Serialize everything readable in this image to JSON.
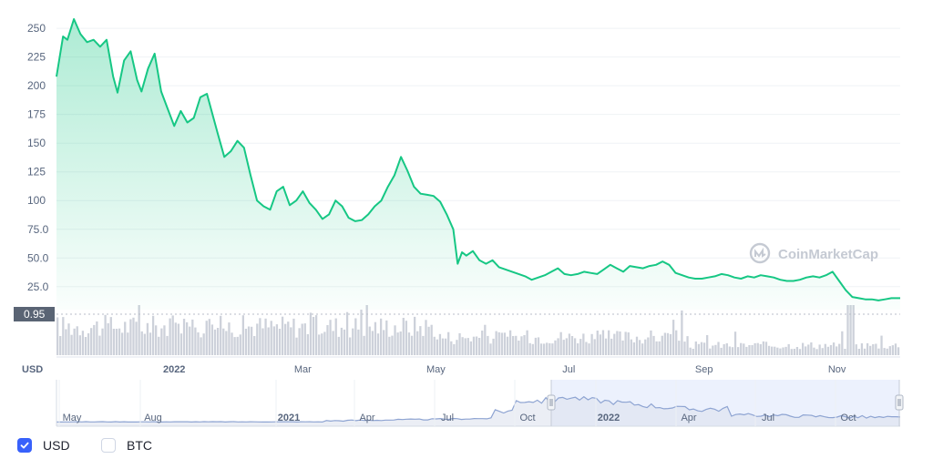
{
  "colors": {
    "line": "#16c784",
    "volume": "#cdd1da",
    "grid": "#eff2f5",
    "nav_line": "#8ea4d2",
    "nav_sel": "#e6ecfc",
    "check": "#3861fb"
  },
  "watermark": {
    "text": "CoinMarketCap",
    "icon": "coinmarketcap-logo-icon"
  },
  "axis_unit": "USD",
  "current_volume_label": "0.95",
  "legend": [
    {
      "label": "USD",
      "checked": true
    },
    {
      "label": "BTC",
      "checked": false
    }
  ],
  "chart_data": {
    "type": "line",
    "y_ticks": [
      "25.0",
      "50.0",
      "75.0",
      "100",
      "125",
      "150",
      "175",
      "200",
      "225",
      "250"
    ],
    "ylim": [
      5,
      262
    ],
    "x_ticks": [
      {
        "label": "2022",
        "x": "2022-01-01",
        "major": true
      },
      {
        "label": "Mar",
        "x": "2022-03-01",
        "major": false
      },
      {
        "label": "May",
        "x": "2022-05-01",
        "major": false
      },
      {
        "label": "Jul",
        "x": "2022-07-01",
        "major": false
      },
      {
        "label": "Sep",
        "x": "2022-09-01",
        "major": false
      },
      {
        "label": "Nov",
        "x": "2022-11-01",
        "major": false
      }
    ],
    "xlim": [
      "2021-11-08",
      "2022-11-30"
    ],
    "series": [
      {
        "points": [
          [
            "2021-11-08",
            208
          ],
          [
            "2021-11-11",
            243
          ],
          [
            "2021-11-13",
            240
          ],
          [
            "2021-11-16",
            258
          ],
          [
            "2021-11-19",
            245
          ],
          [
            "2021-11-22",
            238
          ],
          [
            "2021-11-25",
            240
          ],
          [
            "2021-11-28",
            234
          ],
          [
            "2021-12-01",
            240
          ],
          [
            "2021-12-04",
            208
          ],
          [
            "2021-12-06",
            194
          ],
          [
            "2021-12-09",
            222
          ],
          [
            "2021-12-12",
            230
          ],
          [
            "2021-12-15",
            205
          ],
          [
            "2021-12-17",
            195
          ],
          [
            "2021-12-20",
            215
          ],
          [
            "2021-12-23",
            228
          ],
          [
            "2021-12-26",
            195
          ],
          [
            "2021-12-29",
            180
          ],
          [
            "2022-01-01",
            165
          ],
          [
            "2022-01-04",
            178
          ],
          [
            "2022-01-07",
            168
          ],
          [
            "2022-01-10",
            172
          ],
          [
            "2022-01-13",
            190
          ],
          [
            "2022-01-16",
            193
          ],
          [
            "2022-01-19",
            172
          ],
          [
            "2022-01-21",
            158
          ],
          [
            "2022-01-24",
            138
          ],
          [
            "2022-01-27",
            143
          ],
          [
            "2022-01-30",
            152
          ],
          [
            "2022-02-02",
            146
          ],
          [
            "2022-02-05",
            122
          ],
          [
            "2022-02-08",
            100
          ],
          [
            "2022-02-11",
            95
          ],
          [
            "2022-02-14",
            92
          ],
          [
            "2022-02-17",
            108
          ],
          [
            "2022-02-20",
            112
          ],
          [
            "2022-02-23",
            96
          ],
          [
            "2022-02-26",
            100
          ],
          [
            "2022-03-01",
            108
          ],
          [
            "2022-03-04",
            98
          ],
          [
            "2022-03-07",
            92
          ],
          [
            "2022-03-10",
            84
          ],
          [
            "2022-03-13",
            88
          ],
          [
            "2022-03-16",
            100
          ],
          [
            "2022-03-19",
            95
          ],
          [
            "2022-03-22",
            85
          ],
          [
            "2022-03-25",
            82
          ],
          [
            "2022-03-28",
            83
          ],
          [
            "2022-03-31",
            88
          ],
          [
            "2022-04-03",
            95
          ],
          [
            "2022-04-06",
            100
          ],
          [
            "2022-04-09",
            112
          ],
          [
            "2022-04-12",
            122
          ],
          [
            "2022-04-15",
            138
          ],
          [
            "2022-04-18",
            126
          ],
          [
            "2022-04-21",
            112
          ],
          [
            "2022-04-24",
            106
          ],
          [
            "2022-04-27",
            105
          ],
          [
            "2022-04-30",
            104
          ],
          [
            "2022-05-03",
            99
          ],
          [
            "2022-05-06",
            88
          ],
          [
            "2022-05-09",
            75
          ],
          [
            "2022-05-11",
            45
          ],
          [
            "2022-05-13",
            55
          ],
          [
            "2022-05-15",
            52
          ],
          [
            "2022-05-18",
            56
          ],
          [
            "2022-05-21",
            48
          ],
          [
            "2022-05-24",
            45
          ],
          [
            "2022-05-27",
            48
          ],
          [
            "2022-05-30",
            42
          ],
          [
            "2022-06-02",
            40
          ],
          [
            "2022-06-05",
            38
          ],
          [
            "2022-06-08",
            36
          ],
          [
            "2022-06-11",
            34
          ],
          [
            "2022-06-14",
            31
          ],
          [
            "2022-06-17",
            33
          ],
          [
            "2022-06-20",
            35
          ],
          [
            "2022-06-23",
            38
          ],
          [
            "2022-06-26",
            41
          ],
          [
            "2022-06-29",
            36
          ],
          [
            "2022-07-02",
            35
          ],
          [
            "2022-07-05",
            36
          ],
          [
            "2022-07-08",
            38
          ],
          [
            "2022-07-11",
            37
          ],
          [
            "2022-07-14",
            36
          ],
          [
            "2022-07-17",
            40
          ],
          [
            "2022-07-20",
            44
          ],
          [
            "2022-07-23",
            41
          ],
          [
            "2022-07-26",
            38
          ],
          [
            "2022-07-29",
            43
          ],
          [
            "2022-08-01",
            42
          ],
          [
            "2022-08-04",
            41
          ],
          [
            "2022-08-07",
            43
          ],
          [
            "2022-08-10",
            44
          ],
          [
            "2022-08-13",
            47
          ],
          [
            "2022-08-16",
            44
          ],
          [
            "2022-08-19",
            37
          ],
          [
            "2022-08-22",
            35
          ],
          [
            "2022-08-25",
            33
          ],
          [
            "2022-08-28",
            32
          ],
          [
            "2022-08-31",
            32
          ],
          [
            "2022-09-03",
            33
          ],
          [
            "2022-09-06",
            34
          ],
          [
            "2022-09-09",
            36
          ],
          [
            "2022-09-12",
            35
          ],
          [
            "2022-09-15",
            33
          ],
          [
            "2022-09-18",
            32
          ],
          [
            "2022-09-21",
            34
          ],
          [
            "2022-09-24",
            33
          ],
          [
            "2022-09-27",
            35
          ],
          [
            "2022-09-30",
            34
          ],
          [
            "2022-10-03",
            33
          ],
          [
            "2022-10-06",
            31
          ],
          [
            "2022-10-09",
            30
          ],
          [
            "2022-10-12",
            30
          ],
          [
            "2022-10-15",
            31
          ],
          [
            "2022-10-18",
            33
          ],
          [
            "2022-10-21",
            34
          ],
          [
            "2022-10-24",
            33
          ],
          [
            "2022-10-27",
            35
          ],
          [
            "2022-10-30",
            38
          ],
          [
            "2022-11-02",
            30
          ],
          [
            "2022-11-05",
            22
          ],
          [
            "2022-11-08",
            16
          ],
          [
            "2022-11-11",
            15
          ],
          [
            "2022-11-14",
            14
          ],
          [
            "2022-11-17",
            14
          ],
          [
            "2022-11-20",
            13
          ],
          [
            "2022-11-23",
            14
          ],
          [
            "2022-11-26",
            15
          ],
          [
            "2022-11-30",
            15
          ]
        ]
      }
    ],
    "volume_seed": 17,
    "navigator": {
      "x_ticks": [
        {
          "label": "May",
          "major": false
        },
        {
          "label": "Aug",
          "major": false
        },
        {
          "label": "2021",
          "major": true
        },
        {
          "label": "Apr",
          "major": false
        },
        {
          "label": "Jul",
          "major": false
        },
        {
          "label": "Oct",
          "major": false
        },
        {
          "label": "2022",
          "major": true
        },
        {
          "label": "Apr",
          "major": false
        },
        {
          "label": "Jul",
          "major": false
        },
        {
          "label": "Oct",
          "major": false
        }
      ]
    },
    "grid": true
  }
}
